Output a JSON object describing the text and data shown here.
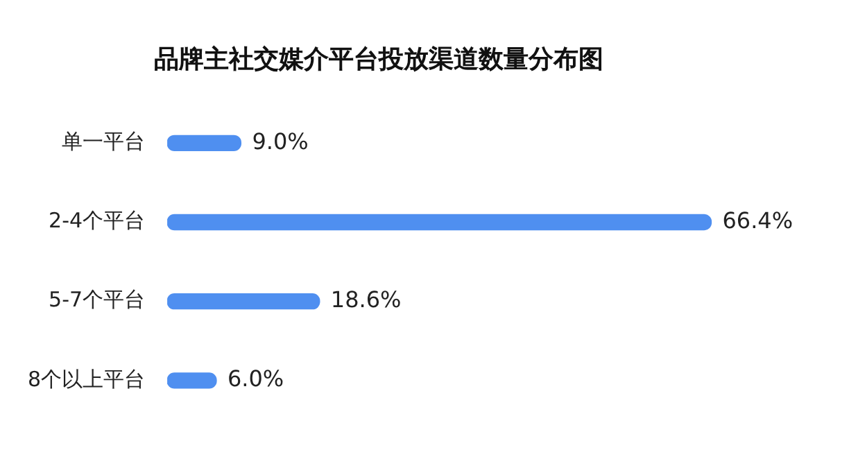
{
  "chart_data": {
    "type": "bar",
    "orientation": "horizontal",
    "title": "品牌主社交媒介平台投放渠道数量分布图",
    "categories": [
      "单一平台",
      "2-4个平台",
      "5-7个平台",
      "8个以上平台"
    ],
    "values": [
      9.0,
      66.4,
      18.6,
      6.0
    ],
    "value_labels": [
      "9.0%",
      "66.4%",
      "18.6%",
      "6.0%"
    ],
    "color": "#4f8ff0",
    "legend": false
  }
}
